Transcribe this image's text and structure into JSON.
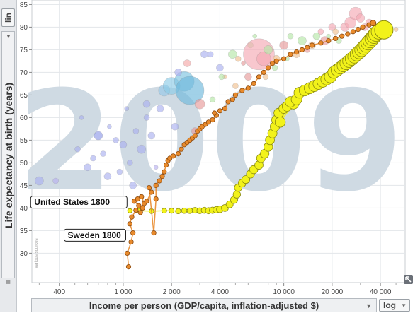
{
  "chart_data": {
    "type": "scatter",
    "year_watermark": "2009",
    "xlabel": "Income per person (GDP/capita, inflation-adjusted $)",
    "ylabel": "Life expectancy at birth (years)",
    "x_scale": "log",
    "y_scale": "linear",
    "xlim": [
      270,
      57000
    ],
    "ylim": [
      23.5,
      86
    ],
    "x_ticks": [
      {
        "v": 400,
        "t": "400"
      },
      {
        "v": 1000,
        "t": "1 000"
      },
      {
        "v": 2000,
        "t": "2 000"
      },
      {
        "v": 4000,
        "t": "4 000"
      },
      {
        "v": 10000,
        "t": "10 000"
      },
      {
        "v": 20000,
        "t": "20 000"
      },
      {
        "v": 40000,
        "t": "40 000"
      }
    ],
    "x_minor_ticks": [
      300,
      500,
      600,
      700,
      800,
      900,
      3000,
      5000,
      6000,
      7000,
      8000,
      9000,
      30000,
      50000
    ],
    "y_ticks": [
      30,
      35,
      40,
      45,
      50,
      55,
      60,
      65,
      70,
      75,
      80,
      85
    ],
    "grid": true,
    "annotations": [
      {
        "text": "United States 1800",
        "x": 1100,
        "y": 39.8,
        "label_anchor": "left"
      },
      {
        "text": "Sweden 1800",
        "x": 1080,
        "y": 32.5,
        "label_anchor": "left"
      }
    ],
    "source_note": "Various sources",
    "series": [
      {
        "name": "United States",
        "color": "#f2f21a",
        "stroke": "#8a8a10",
        "trail": [
          [
            1100,
            39.4
          ],
          [
            1250,
            39.4
          ],
          [
            1500,
            39.3
          ],
          [
            1800,
            39.4
          ],
          [
            2000,
            39.4
          ],
          [
            2200,
            39.3
          ],
          [
            2400,
            39.4
          ],
          [
            2600,
            39.4
          ],
          [
            2800,
            39.5
          ],
          [
            3000,
            39.4
          ],
          [
            3200,
            39.5
          ],
          [
            3400,
            39.4
          ],
          [
            3600,
            39.5
          ],
          [
            3800,
            39.6
          ],
          [
            4000,
            39.7
          ],
          [
            4300,
            40.0
          ],
          [
            4600,
            40.8
          ],
          [
            4900,
            41.8
          ],
          [
            5100,
            43.0
          ],
          [
            5200,
            44.5
          ],
          [
            5500,
            45.5
          ],
          [
            5800,
            46.3
          ],
          [
            6200,
            47.5
          ],
          [
            6500,
            48.5
          ],
          [
            7000,
            49.5
          ],
          [
            7200,
            51.0
          ],
          [
            7600,
            52.0
          ],
          [
            8000,
            53.5
          ],
          [
            8200,
            55.0
          ],
          [
            8500,
            56.5
          ],
          [
            8800,
            58.0
          ],
          [
            9000,
            59.5
          ],
          [
            9300,
            61.0
          ],
          [
            10000,
            62.0
          ],
          [
            10500,
            62.5
          ],
          [
            11500,
            63.0
          ],
          [
            9500,
            59.0
          ],
          [
            11000,
            63.5
          ],
          [
            12000,
            64.0
          ],
          [
            12500,
            65.5
          ],
          [
            13500,
            66.0
          ],
          [
            14500,
            66.5
          ],
          [
            15500,
            67.0
          ],
          [
            16500,
            67.5
          ],
          [
            17500,
            68.0
          ],
          [
            18500,
            68.5
          ],
          [
            19500,
            69.0
          ],
          [
            20500,
            70.0
          ],
          [
            21500,
            70.5
          ],
          [
            22500,
            71.0
          ],
          [
            23500,
            71.5
          ],
          [
            24500,
            72.0
          ],
          [
            25500,
            72.5
          ],
          [
            26500,
            73.0
          ],
          [
            27500,
            73.5
          ],
          [
            28500,
            74.0
          ],
          [
            29500,
            74.5
          ],
          [
            30500,
            75.0
          ],
          [
            31500,
            75.5
          ],
          [
            32500,
            76.0
          ],
          [
            33500,
            76.5
          ],
          [
            34500,
            77.0
          ],
          [
            35500,
            77.5
          ],
          [
            36500,
            78.0
          ],
          [
            37500,
            78.5
          ],
          [
            39000,
            79.0
          ]
        ],
        "current": [
          42000,
          79.4
        ]
      },
      {
        "name": "Sweden",
        "color": "#e88a2c",
        "stroke": "#8a4a10",
        "trail": [
          [
            1080,
            27.0
          ],
          [
            1060,
            30.0
          ],
          [
            1120,
            32.5
          ],
          [
            1150,
            34.5
          ],
          [
            1100,
            36.5
          ],
          [
            1130,
            38.0
          ],
          [
            1200,
            39.5
          ],
          [
            1250,
            40.5
          ],
          [
            1170,
            41.5
          ],
          [
            1230,
            42.0
          ],
          [
            1300,
            42.5
          ],
          [
            1350,
            41.0
          ],
          [
            1280,
            39.0
          ],
          [
            1320,
            40.0
          ],
          [
            1400,
            41.5
          ],
          [
            1500,
            43.5
          ],
          [
            1450,
            44.5
          ],
          [
            1550,
            34.5
          ],
          [
            1600,
            42.0
          ],
          [
            1600,
            45.0
          ],
          [
            1680,
            46.0
          ],
          [
            1750,
            47.0
          ],
          [
            1800,
            48.0
          ],
          [
            1850,
            49.5
          ],
          [
            1900,
            50.5
          ],
          [
            1950,
            51.0
          ],
          [
            2050,
            51.5
          ],
          [
            2200,
            52.0
          ],
          [
            2300,
            53.0
          ],
          [
            2400,
            54.0
          ],
          [
            2500,
            54.5
          ],
          [
            2600,
            55.0
          ],
          [
            2700,
            55.5
          ],
          [
            2800,
            56.0
          ],
          [
            2900,
            57.0
          ],
          [
            3000,
            57.5
          ],
          [
            3100,
            58.0
          ],
          [
            3250,
            58.5
          ],
          [
            3400,
            59.0
          ],
          [
            3600,
            59.5
          ],
          [
            3800,
            60.5
          ],
          [
            3700,
            61.0
          ],
          [
            4000,
            61.5
          ],
          [
            4300,
            62.0
          ],
          [
            4500,
            63.5
          ],
          [
            4800,
            64.0
          ],
          [
            5000,
            65.0
          ],
          [
            5500,
            66.0
          ],
          [
            6000,
            66.5
          ],
          [
            6500,
            67.5
          ],
          [
            7000,
            69.0
          ],
          [
            7500,
            70.0
          ],
          [
            8000,
            71.0
          ],
          [
            8500,
            72.0
          ],
          [
            9000,
            72.5
          ],
          [
            10000,
            73.0
          ],
          [
            11000,
            74.0
          ],
          [
            12000,
            74.5
          ],
          [
            13000,
            75.0
          ],
          [
            14000,
            75.5
          ],
          [
            15000,
            76.0
          ],
          [
            17000,
            76.5
          ],
          [
            19000,
            77.0
          ],
          [
            21000,
            77.5
          ],
          [
            23000,
            78.0
          ],
          [
            25000,
            78.5
          ],
          [
            27000,
            79.0
          ],
          [
            29000,
            79.5
          ],
          [
            31000,
            80.0
          ],
          [
            34000,
            80.5
          ],
          [
            36000,
            80.8
          ]
        ],
        "current": [
          36000,
          80.9
        ]
      }
    ],
    "background_bubbles": [
      [
        300,
        46,
        6,
        "#aab0f0"
      ],
      [
        380,
        46,
        4,
        "#b9b0f0"
      ],
      [
        480,
        42,
        3,
        "#b9b0f0"
      ],
      [
        520,
        53,
        4,
        "#aab0f0"
      ],
      [
        550,
        60,
        3,
        "#aab0f0"
      ],
      [
        600,
        49,
        5,
        "#aab0f0"
      ],
      [
        650,
        51,
        4,
        "#aab0f0"
      ],
      [
        700,
        56,
        6,
        "#8f9ae8"
      ],
      [
        750,
        52,
        4,
        "#aab0f0"
      ],
      [
        800,
        47,
        5,
        "#aab0f0"
      ],
      [
        820,
        58,
        3,
        "#aab0f0"
      ],
      [
        900,
        55,
        4,
        "#aab0f0"
      ],
      [
        950,
        48,
        4,
        "#aab0f0"
      ],
      [
        1000,
        54,
        5,
        "#aab0f0"
      ],
      [
        1050,
        62,
        3,
        "#aab0f0"
      ],
      [
        1100,
        50,
        4,
        "#aab0f0"
      ],
      [
        1150,
        45,
        5,
        "#aab0f0"
      ],
      [
        1200,
        57,
        4,
        "#aab0f0"
      ],
      [
        1300,
        53,
        6,
        "#aab0f0"
      ],
      [
        1400,
        60,
        4,
        "#aab0f0"
      ],
      [
        1500,
        56,
        5,
        "#aab0f0"
      ],
      [
        1600,
        49,
        3,
        "#b9b0f0"
      ],
      [
        1700,
        62,
        5,
        "#aab0f0"
      ],
      [
        1800,
        66,
        8,
        "#96c8e8"
      ],
      [
        2000,
        67,
        12,
        "#8ccbe6"
      ],
      [
        2400,
        68,
        14,
        "#7cc3e0"
      ],
      [
        2600,
        66,
        20,
        "#6fb8dc"
      ],
      [
        2200,
        70,
        5,
        "#aab0f0"
      ],
      [
        2500,
        72,
        5,
        "#f5a8a8"
      ],
      [
        3000,
        63,
        7,
        "#e79a9a"
      ],
      [
        3200,
        74,
        5,
        "#aab0f0"
      ],
      [
        3600,
        64,
        4,
        "#b5e6a8"
      ],
      [
        4000,
        71,
        5,
        "#aab0f0"
      ],
      [
        4300,
        69,
        3,
        "#f0c090"
      ],
      [
        4800,
        74,
        6,
        "#b5e6a8"
      ],
      [
        5200,
        73,
        4,
        "#f0c090"
      ],
      [
        5600,
        72,
        3,
        "#e79a9a"
      ],
      [
        6200,
        76,
        4,
        "#b5e6a8"
      ],
      [
        7000,
        74,
        22,
        "#f4a9b4"
      ],
      [
        7500,
        73,
        10,
        "#f4a9b4"
      ],
      [
        8000,
        75,
        6,
        "#b5e6a8"
      ],
      [
        9000,
        73,
        5,
        "#f0c090"
      ],
      [
        10000,
        76,
        6,
        "#e79a9a"
      ],
      [
        11000,
        78,
        4,
        "#b5e6a8"
      ],
      [
        12000,
        74,
        5,
        "#f0c090"
      ],
      [
        13000,
        77,
        6,
        "#b5e6a8"
      ],
      [
        14000,
        75,
        4,
        "#e79a9a"
      ],
      [
        15000,
        76,
        5,
        "#f0c090"
      ],
      [
        16000,
        78,
        5,
        "#b5e6a8"
      ],
      [
        17000,
        79,
        4,
        "#f4a9b4"
      ],
      [
        18000,
        77,
        6,
        "#e79a9a"
      ],
      [
        19000,
        78,
        3,
        "#b5e6a8"
      ],
      [
        20000,
        80,
        5,
        "#f4a9b4"
      ],
      [
        21000,
        79,
        4,
        "#f0c090"
      ],
      [
        22000,
        77,
        4,
        "#b5e6a8"
      ],
      [
        24000,
        80,
        6,
        "#f4a9b4"
      ],
      [
        26000,
        81,
        8,
        "#f4a9b4"
      ],
      [
        28000,
        83,
        9,
        "#f4a9b4"
      ],
      [
        30000,
        82,
        6,
        "#f4a9b4"
      ],
      [
        32000,
        80,
        5,
        "#f4a9b4"
      ],
      [
        34000,
        81,
        5,
        "#f4a9b4"
      ],
      [
        6600,
        78,
        3,
        "#b5e6a8"
      ],
      [
        5000,
        67,
        4,
        "#f0c090"
      ],
      [
        4100,
        69,
        4,
        "#b5e6a8"
      ],
      [
        3500,
        74,
        4,
        "#aab0f0"
      ],
      [
        2800,
        57,
        5,
        "#e79a9a"
      ],
      [
        2100,
        58,
        5,
        "#aab0f0"
      ],
      [
        1400,
        63,
        5,
        "#aab0f0"
      ],
      [
        8800,
        71,
        4,
        "#b5e6a8"
      ],
      [
        10500,
        73,
        3,
        "#b5e6a8"
      ],
      [
        7700,
        69,
        4,
        "#f0c090"
      ],
      [
        6000,
        69,
        5,
        "#e79a9a"
      ],
      [
        50000,
        79.5,
        3,
        "#f0c090"
      ]
    ]
  }
}
